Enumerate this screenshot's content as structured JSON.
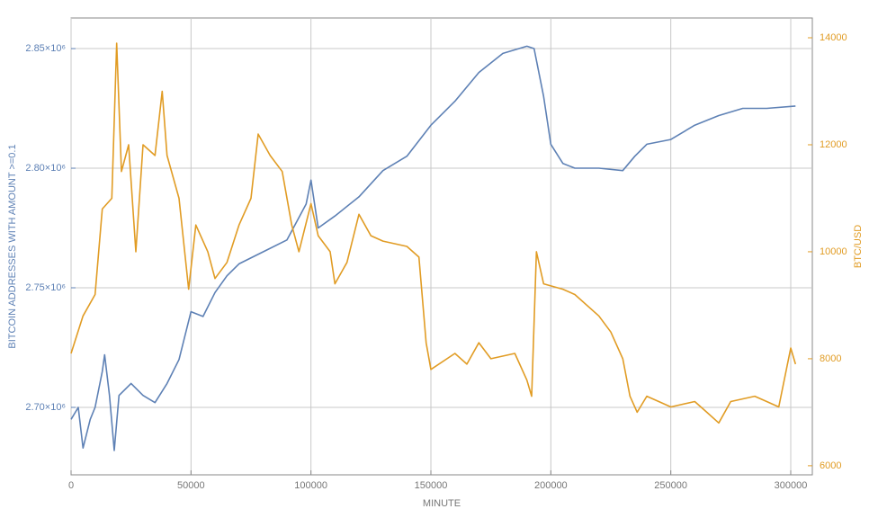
{
  "chart_data": {
    "type": "line",
    "xlabel": "MINUTE",
    "ylabel": "BITCOIN ADDRESSES WITH AMOUNT >=0.1",
    "y2label": "BTC/USD",
    "xlim": [
      0,
      309000
    ],
    "xticks": [
      0,
      50000,
      100000,
      150000,
      200000,
      250000,
      300000
    ],
    "ylim": [
      2671800,
      2862800
    ],
    "yticks": [
      {
        "value": 2700000,
        "label": "2.70×10⁶"
      },
      {
        "value": 2750000,
        "label": "2.75×10⁶"
      },
      {
        "value": 2800000,
        "label": "2.80×10⁶"
      },
      {
        "value": 2850000,
        "label": "2.85×10⁶"
      }
    ],
    "y2lim": [
      5830,
      14370
    ],
    "y2ticks": [
      6000,
      8000,
      10000,
      12000,
      14000
    ],
    "grid": true,
    "series": [
      {
        "name": "BITCOIN ADDRESSES WITH AMOUNT >=0.1",
        "color": "#5e81b5",
        "x": [
          0,
          3000,
          5000,
          8000,
          10000,
          13000,
          14000,
          16000,
          18000,
          20000,
          25000,
          30000,
          35000,
          40000,
          45000,
          50000,
          55000,
          60000,
          65000,
          70000,
          80000,
          90000,
          98000,
          100000,
          103000,
          110000,
          120000,
          130000,
          140000,
          150000,
          160000,
          170000,
          180000,
          190000,
          193000,
          197000,
          200000,
          205000,
          210000,
          220000,
          230000,
          235000,
          240000,
          250000,
          260000,
          270000,
          280000,
          290000,
          302000
        ],
        "values": [
          2695000,
          2700000,
          2683000,
          2695000,
          2700000,
          2715000,
          2722000,
          2705000,
          2682000,
          2705000,
          2710000,
          2705000,
          2702000,
          2710000,
          2720000,
          2740000,
          2738000,
          2748000,
          2755000,
          2760000,
          2765000,
          2770000,
          2785000,
          2795000,
          2775000,
          2780000,
          2788000,
          2799000,
          2805000,
          2818000,
          2828000,
          2840000,
          2848000,
          2851000,
          2850000,
          2830000,
          2810000,
          2802000,
          2800000,
          2800000,
          2799000,
          2805000,
          2810000,
          2812000,
          2818000,
          2822000,
          2825000,
          2825000,
          2826000
        ]
      },
      {
        "name": "BTC/USD",
        "color": "#e19c24",
        "axis": "y2",
        "x": [
          0,
          5000,
          10000,
          13000,
          17000,
          19000,
          21000,
          24000,
          27000,
          30000,
          35000,
          38000,
          40000,
          45000,
          49000,
          52000,
          57000,
          60000,
          65000,
          70000,
          75000,
          78000,
          83000,
          88000,
          92000,
          95000,
          100000,
          103000,
          108000,
          110000,
          115000,
          120000,
          125000,
          130000,
          140000,
          145000,
          148000,
          150000,
          160000,
          165000,
          170000,
          175000,
          185000,
          190000,
          192000,
          194000,
          197000,
          205000,
          210000,
          220000,
          225000,
          230000,
          233000,
          236000,
          240000,
          245000,
          250000,
          260000,
          265000,
          270000,
          275000,
          285000,
          290000,
          295000,
          300000,
          302000
        ],
        "values": [
          8100,
          8800,
          9200,
          10800,
          11000,
          13900,
          11500,
          12000,
          10000,
          12000,
          11800,
          13000,
          11800,
          11000,
          9300,
          10500,
          10000,
          9500,
          9800,
          10500,
          11000,
          12200,
          11800,
          11500,
          10500,
          10000,
          10900,
          10300,
          10000,
          9400,
          9800,
          10700,
          10300,
          10200,
          10100,
          9900,
          8300,
          7800,
          8100,
          7900,
          8300,
          8000,
          8100,
          7600,
          7300,
          10000,
          9400,
          9300,
          9200,
          8800,
          8500,
          8000,
          7300,
          7000,
          7300,
          7200,
          7100,
          7200,
          7000,
          6800,
          7200,
          7300,
          7200,
          7100,
          8200,
          7900
        ]
      }
    ]
  }
}
